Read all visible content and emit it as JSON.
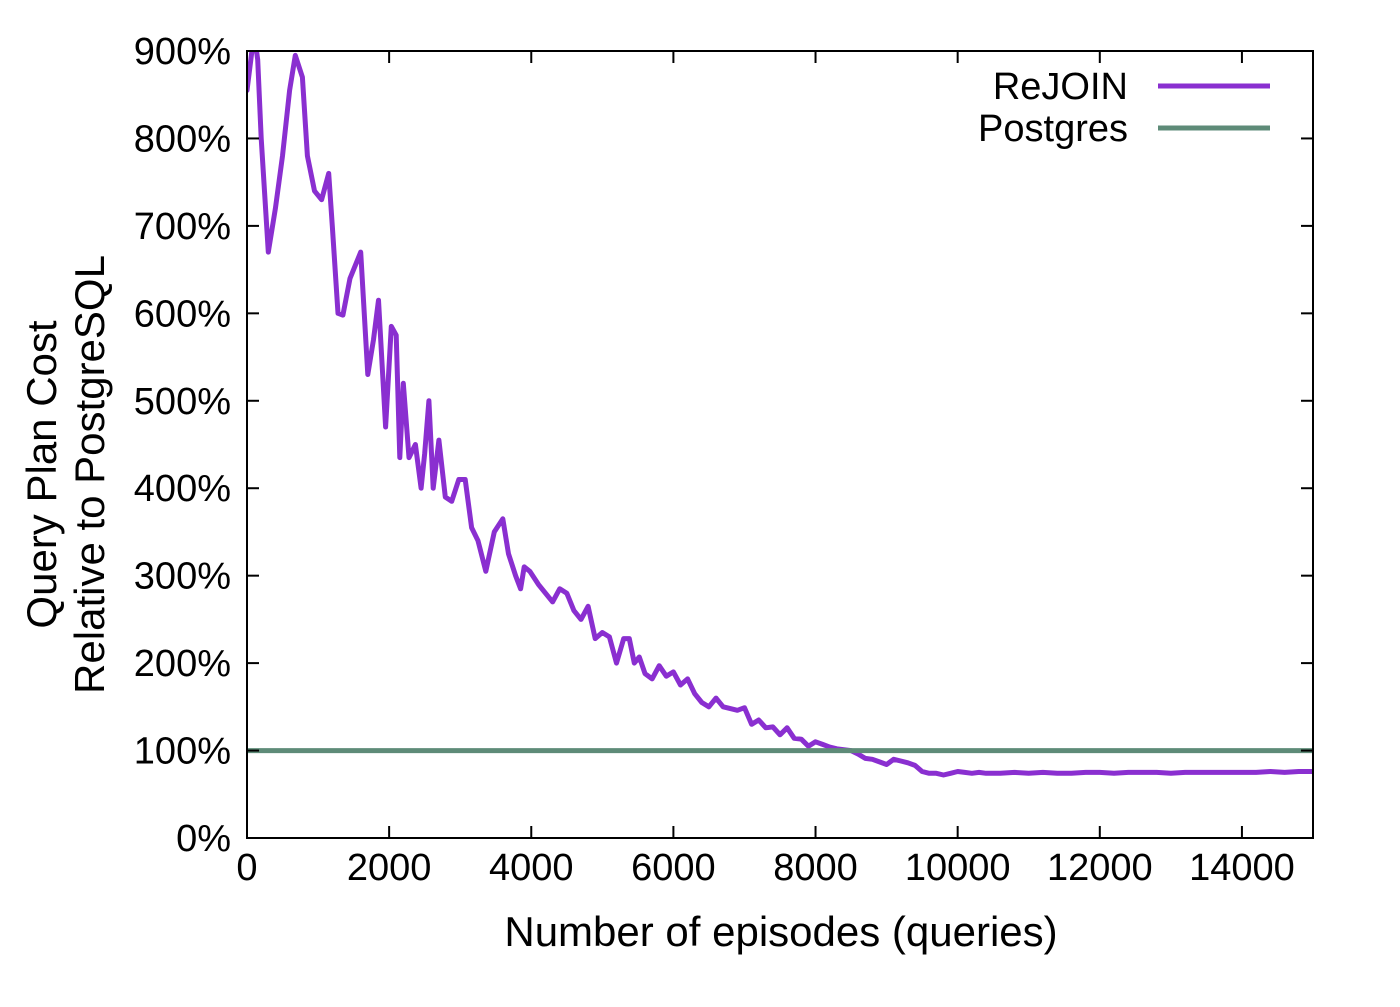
{
  "chart_data": {
    "type": "line",
    "title": "",
    "xlabel": "Number of episodes (queries)",
    "ylabel_lines": [
      "Query Plan Cost",
      "Relative to PostgreSQL"
    ],
    "xlim": [
      0,
      15000
    ],
    "ylim": [
      0,
      900
    ],
    "xticks": [
      0,
      2000,
      4000,
      6000,
      8000,
      10000,
      12000,
      14000
    ],
    "xtick_labels": [
      "0",
      "2000",
      "4000",
      "6000",
      "8000",
      "10000",
      "12000",
      "14000"
    ],
    "yticks": [
      0,
      100,
      200,
      300,
      400,
      500,
      600,
      700,
      800,
      900
    ],
    "ytick_labels": [
      "0%",
      "100%",
      "200%",
      "300%",
      "400%",
      "500%",
      "600%",
      "700%",
      "800%",
      "900%"
    ],
    "grid": false,
    "legend_position": "top-right",
    "series": [
      {
        "name": "ReJOIN",
        "color": "#8a2fd0",
        "x": [
          0,
          100,
          150,
          200,
          300,
          400,
          500,
          600,
          680,
          780,
          850,
          950,
          1050,
          1150,
          1200,
          1280,
          1350,
          1450,
          1600,
          1700,
          1780,
          1850,
          1950,
          2030,
          2100,
          2150,
          2200,
          2280,
          2370,
          2450,
          2500,
          2560,
          2620,
          2700,
          2790,
          2880,
          2980,
          3070,
          3160,
          3250,
          3360,
          3480,
          3600,
          3680,
          3780,
          3850,
          3900,
          3980,
          4100,
          4200,
          4300,
          4400,
          4500,
          4600,
          4700,
          4800,
          4900,
          5000,
          5100,
          5200,
          5300,
          5380,
          5450,
          5520,
          5600,
          5700,
          5800,
          5900,
          6000,
          6100,
          6200,
          6300,
          6400,
          6500,
          6600,
          6700,
          6800,
          6900,
          7000,
          7100,
          7200,
          7300,
          7400,
          7500,
          7600,
          7700,
          7800,
          7900,
          8000,
          8100,
          8200,
          8300,
          8400,
          8500,
          8600,
          8700,
          8800,
          8900,
          9000,
          9100,
          9200,
          9300,
          9400,
          9500,
          9600,
          9700,
          9800,
          9900,
          10000,
          10100,
          10200,
          10300,
          10400,
          10600,
          10800,
          11000,
          11200,
          11400,
          11600,
          11800,
          12000,
          12200,
          12400,
          12600,
          12800,
          13000,
          13200,
          13400,
          13600,
          13800,
          14000,
          14200,
          14400,
          14600,
          14800,
          15000
        ],
        "y": [
          855,
          920,
          890,
          800,
          670,
          720,
          780,
          855,
          895,
          870,
          780,
          740,
          730,
          760,
          700,
          600,
          598,
          640,
          670,
          530,
          570,
          615,
          470,
          585,
          575,
          435,
          520,
          435,
          450,
          400,
          440,
          500,
          400,
          455,
          390,
          385,
          410,
          410,
          355,
          340,
          305,
          350,
          365,
          325,
          300,
          285,
          310,
          305,
          290,
          280,
          270,
          285,
          280,
          260,
          250,
          265,
          228,
          235,
          230,
          200,
          228,
          228,
          200,
          207,
          188,
          182,
          197,
          185,
          190,
          175,
          182,
          165,
          155,
          150,
          160,
          150,
          148,
          146,
          149,
          130,
          135,
          126,
          127,
          118,
          126,
          114,
          113,
          105,
          110,
          107,
          104,
          102,
          101,
          100,
          96,
          91,
          90,
          87,
          84,
          90,
          88,
          86,
          83,
          76,
          74,
          74,
          72,
          74,
          76,
          75,
          74,
          75,
          74,
          74,
          75,
          74,
          75,
          74,
          74,
          75,
          75,
          74,
          75,
          75,
          75,
          74,
          75,
          75,
          75,
          75,
          75,
          75,
          76,
          75,
          76,
          76
        ]
      },
      {
        "name": "Postgres",
        "color": "#5e8b78",
        "x": [
          0,
          15000
        ],
        "y": [
          100,
          100
        ]
      }
    ]
  }
}
